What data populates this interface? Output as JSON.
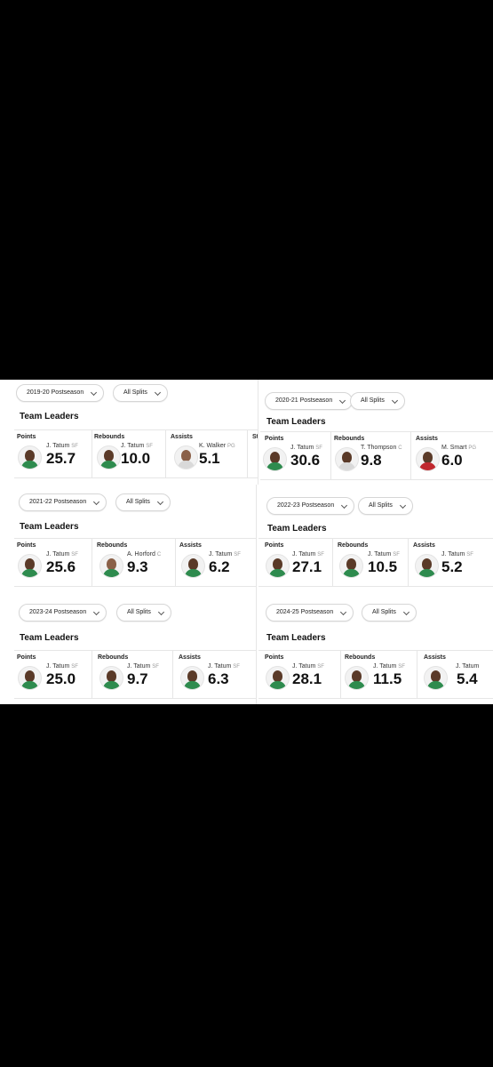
{
  "panels": [
    {
      "season": "2019-20 Postseason",
      "splits": "All Splits",
      "title": "Team Leaders",
      "leaders": [
        {
          "cat": "Points",
          "name": "J. Tatum",
          "pos": "SF",
          "value": "25.7",
          "jersey": "green"
        },
        {
          "cat": "Rebounds",
          "name": "J. Tatum",
          "pos": "SF",
          "value": "10.0",
          "jersey": "green"
        },
        {
          "cat": "Assists",
          "name": "K. Walker",
          "pos": "PG",
          "value": "5.1",
          "jersey": "white"
        }
      ],
      "extra_cat": "St"
    },
    {
      "season": "2020-21 Postseason",
      "splits": "All Splits",
      "title": "Team Leaders",
      "leaders": [
        {
          "cat": "Points",
          "name": "J. Tatum",
          "pos": "SF",
          "value": "30.6",
          "jersey": "green"
        },
        {
          "cat": "Rebounds",
          "name": "T. Thompson",
          "pos": "C",
          "value": "9.8",
          "jersey": "white"
        },
        {
          "cat": "Assists",
          "name": "M. Smart",
          "pos": "PG",
          "value": "6.0",
          "jersey": "red"
        }
      ]
    },
    {
      "season": "2021-22 Postseason",
      "splits": "All Splits",
      "title": "Team Leaders",
      "leaders": [
        {
          "cat": "Points",
          "name": "J. Tatum",
          "pos": "SF",
          "value": "25.6",
          "jersey": "green"
        },
        {
          "cat": "Rebounds",
          "name": "A. Horford",
          "pos": "C",
          "value": "9.3",
          "jersey": "green"
        },
        {
          "cat": "Assists",
          "name": "J. Tatum",
          "pos": "SF",
          "value": "6.2",
          "jersey": "green"
        }
      ]
    },
    {
      "season": "2022-23 Postseason",
      "splits": "All Splits",
      "title": "Team Leaders",
      "leaders": [
        {
          "cat": "Points",
          "name": "J. Tatum",
          "pos": "SF",
          "value": "27.1",
          "jersey": "green"
        },
        {
          "cat": "Rebounds",
          "name": "J. Tatum",
          "pos": "SF",
          "value": "10.5",
          "jersey": "green"
        },
        {
          "cat": "Assists",
          "name": "J. Tatum",
          "pos": "SF",
          "value": "5.2",
          "jersey": "green"
        }
      ]
    },
    {
      "season": "2023-24 Postseason",
      "splits": "All Splits",
      "title": "Team Leaders",
      "leaders": [
        {
          "cat": "Points",
          "name": "J. Tatum",
          "pos": "SF",
          "value": "25.0",
          "jersey": "green"
        },
        {
          "cat": "Rebounds",
          "name": "J. Tatum",
          "pos": "SF",
          "value": "9.7",
          "jersey": "green"
        },
        {
          "cat": "Assists",
          "name": "J. Tatum",
          "pos": "SF",
          "value": "6.3",
          "jersey": "green"
        }
      ]
    },
    {
      "season": "2024-25 Postseason",
      "splits": "All Splits",
      "title": "Team Leaders",
      "leaders": [
        {
          "cat": "Points",
          "name": "J. Tatum",
          "pos": "SF",
          "value": "28.1",
          "jersey": "green"
        },
        {
          "cat": "Rebounds",
          "name": "J. Tatum",
          "pos": "SF",
          "value": "11.5",
          "jersey": "green"
        },
        {
          "cat": "Assists",
          "name": "J. Tatum",
          "pos": "",
          "value": "5.4",
          "jersey": "green"
        }
      ]
    }
  ]
}
